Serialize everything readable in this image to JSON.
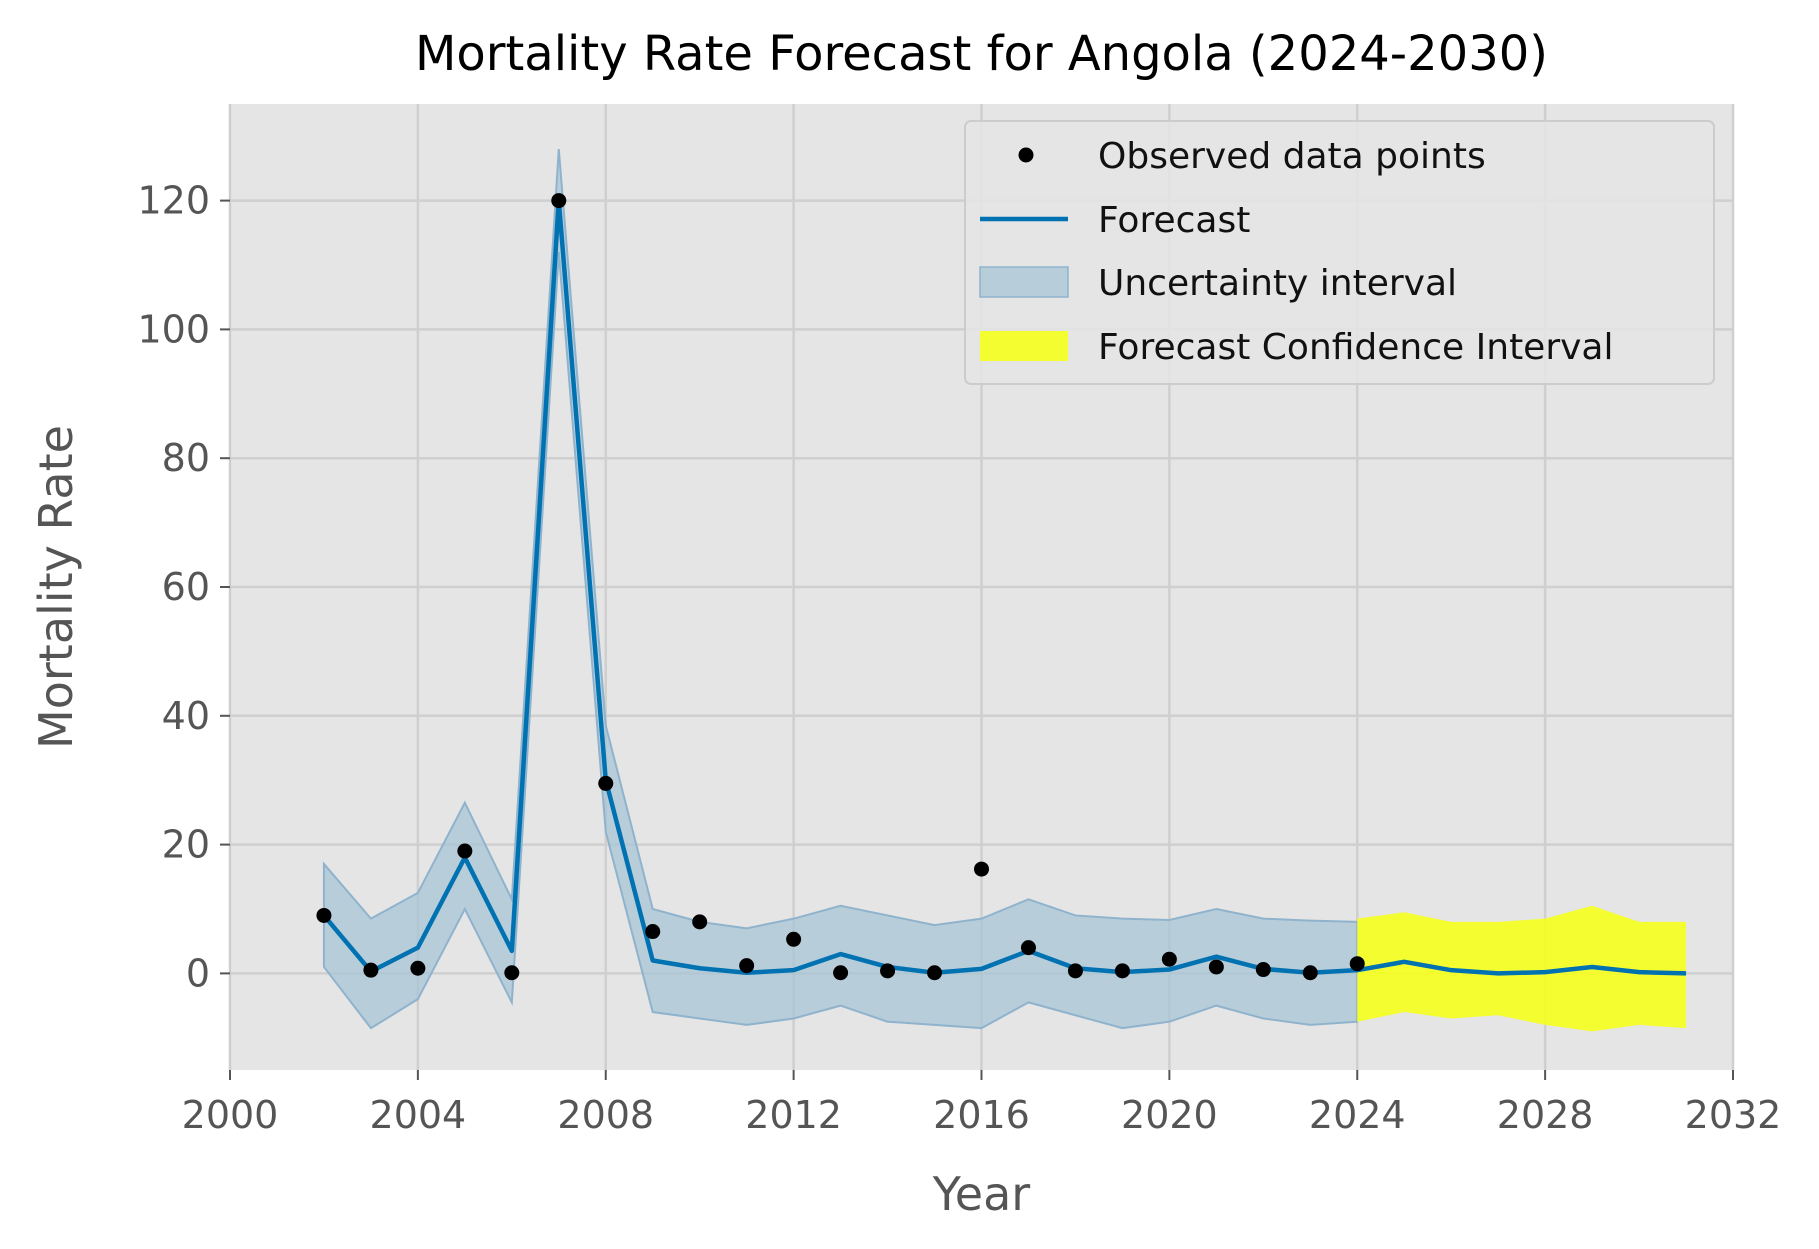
{
  "chart_data": {
    "type": "line",
    "title": "Mortality Rate Forecast for Angola (2024-2030)",
    "xlabel": "Year",
    "ylabel": "Mortality Rate",
    "xlim": [
      2000,
      2032
    ],
    "ylim": [
      -15,
      135
    ],
    "xticks": [
      2000,
      2004,
      2008,
      2012,
      2016,
      2020,
      2024,
      2028,
      2032
    ],
    "yticks": [
      0,
      20,
      40,
      60,
      80,
      100,
      120
    ],
    "grid": true,
    "legend_position": "top-right",
    "colors": {
      "background": "#e5e5e5",
      "grid": "#cfcfcf",
      "forecast_line": "#0072b2",
      "uncertainty_fill": "#a8c4d6",
      "confidence_fill": "#f5ff20",
      "points": "#000000"
    },
    "legend": {
      "observed": "Observed data points",
      "forecast": "Forecast",
      "uncertainty": "Uncertainty interval",
      "confidence": "Forecast Confidence Interval"
    },
    "observed": {
      "x": [
        2002,
        2003,
        2004,
        2005,
        2006,
        2007,
        2008,
        2009,
        2010,
        2011,
        2012,
        2013,
        2014,
        2015,
        2016,
        2017,
        2018,
        2019,
        2020,
        2021,
        2022,
        2023,
        2024
      ],
      "y": [
        9,
        0.5,
        0.8,
        19,
        0.1,
        120,
        29.5,
        6.5,
        8,
        1.2,
        5.3,
        0.1,
        0.4,
        0.1,
        16.2,
        4,
        0.4,
        0.4,
        2.2,
        1,
        0.6,
        0.1,
        1.5
      ]
    },
    "forecast": {
      "x": [
        2002,
        2003,
        2004,
        2005,
        2006,
        2007,
        2008,
        2009,
        2010,
        2011,
        2012,
        2013,
        2014,
        2015,
        2016,
        2017,
        2018,
        2019,
        2020,
        2021,
        2022,
        2023,
        2024,
        2025,
        2026,
        2027,
        2028,
        2029,
        2030,
        2031
      ],
      "y": [
        9,
        0.3,
        4,
        18,
        3.5,
        120,
        30,
        2,
        0.8,
        0.1,
        0.5,
        3,
        1,
        0.1,
        0.7,
        3.5,
        0.8,
        0.2,
        0.6,
        2.6,
        0.7,
        0.1,
        0.5,
        1.8,
        0.5,
        0,
        0.2,
        1,
        0.2,
        0
      ]
    },
    "uncertainty_interval": {
      "x": [
        2002,
        2003,
        2004,
        2005,
        2006,
        2007,
        2008,
        2009,
        2010,
        2011,
        2012,
        2013,
        2014,
        2015,
        2016,
        2017,
        2018,
        2019,
        2020,
        2021,
        2022,
        2023,
        2024
      ],
      "lower": [
        1,
        -8.5,
        -4,
        10,
        -4.5,
        112,
        22,
        -6,
        -7,
        -8,
        -7,
        -5,
        -7.5,
        -8,
        -8.5,
        -4.5,
        -6.5,
        -8.5,
        -7.5,
        -5,
        -7,
        -8,
        -7.5
      ],
      "upper": [
        17,
        8.5,
        12.5,
        26.5,
        11.5,
        128,
        38.5,
        10,
        8,
        7,
        8.5,
        10.5,
        9,
        7.5,
        8.5,
        11.5,
        9,
        8.5,
        8.3,
        10,
        8.5,
        8.2,
        8
      ]
    },
    "confidence_interval": {
      "x": [
        2024,
        2025,
        2026,
        2027,
        2028,
        2029,
        2030,
        2031
      ],
      "lower": [
        -7.5,
        -6,
        -7,
        -6.5,
        -8,
        -9,
        -8,
        -8.5
      ],
      "upper": [
        8.5,
        9.5,
        8,
        8,
        8.5,
        10.5,
        8,
        8
      ]
    }
  }
}
